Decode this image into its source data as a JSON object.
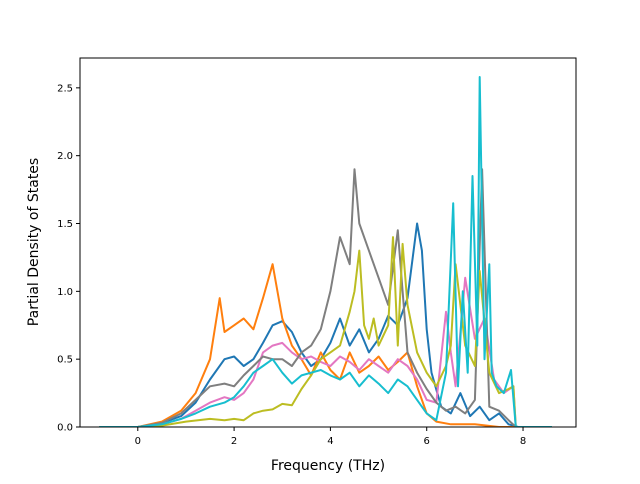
{
  "chart_data": {
    "type": "line",
    "title": "",
    "xlabel": "Frequency (THz)",
    "ylabel": "Partial Density of States",
    "xlim": [
      -1.2,
      9.1
    ],
    "ylim": [
      0.0,
      2.72
    ],
    "xticks": [
      0,
      2,
      4,
      6,
      8
    ],
    "yticks": [
      0.0,
      0.5,
      1.0,
      1.5,
      2.0,
      2.5
    ],
    "xtick_labels": [
      "0",
      "2",
      "4",
      "6",
      "8"
    ],
    "ytick_labels": [
      "0.0",
      "0.5",
      "1.0",
      "1.5",
      "2.0",
      "2.5"
    ],
    "grid": false,
    "legend": "none",
    "series": [
      {
        "color": "#1f77b4",
        "points": [
          [
            -0.8,
            0
          ],
          [
            0,
            0
          ],
          [
            0.5,
            0.03
          ],
          [
            0.9,
            0.08
          ],
          [
            1.2,
            0.18
          ],
          [
            1.5,
            0.35
          ],
          [
            1.8,
            0.5
          ],
          [
            2.0,
            0.52
          ],
          [
            2.2,
            0.45
          ],
          [
            2.4,
            0.5
          ],
          [
            2.6,
            0.62
          ],
          [
            2.8,
            0.75
          ],
          [
            3.0,
            0.78
          ],
          [
            3.2,
            0.7
          ],
          [
            3.4,
            0.55
          ],
          [
            3.6,
            0.45
          ],
          [
            3.8,
            0.5
          ],
          [
            4.0,
            0.62
          ],
          [
            4.2,
            0.8
          ],
          [
            4.4,
            0.6
          ],
          [
            4.6,
            0.72
          ],
          [
            4.8,
            0.55
          ],
          [
            5.0,
            0.65
          ],
          [
            5.2,
            0.82
          ],
          [
            5.4,
            0.75
          ],
          [
            5.6,
            0.95
          ],
          [
            5.8,
            1.5
          ],
          [
            5.9,
            1.3
          ],
          [
            6.0,
            0.72
          ],
          [
            6.1,
            0.4
          ],
          [
            6.3,
            0.15
          ],
          [
            6.5,
            0.1
          ],
          [
            6.7,
            0.25
          ],
          [
            6.9,
            0.08
          ],
          [
            7.1,
            0.15
          ],
          [
            7.3,
            0.05
          ],
          [
            7.5,
            0.1
          ],
          [
            7.7,
            0.02
          ],
          [
            7.9,
            0
          ],
          [
            8.6,
            0
          ]
        ]
      },
      {
        "color": "#ff7f0e",
        "points": [
          [
            -0.8,
            0
          ],
          [
            0,
            0
          ],
          [
            0.5,
            0.04
          ],
          [
            0.9,
            0.12
          ],
          [
            1.2,
            0.25
          ],
          [
            1.5,
            0.5
          ],
          [
            1.7,
            0.95
          ],
          [
            1.8,
            0.7
          ],
          [
            2.0,
            0.75
          ],
          [
            2.2,
            0.8
          ],
          [
            2.4,
            0.72
          ],
          [
            2.6,
            0.95
          ],
          [
            2.8,
            1.2
          ],
          [
            3.0,
            0.8
          ],
          [
            3.2,
            0.6
          ],
          [
            3.4,
            0.5
          ],
          [
            3.6,
            0.38
          ],
          [
            3.8,
            0.55
          ],
          [
            4.0,
            0.42
          ],
          [
            4.2,
            0.35
          ],
          [
            4.4,
            0.55
          ],
          [
            4.6,
            0.4
          ],
          [
            4.8,
            0.45
          ],
          [
            5.0,
            0.52
          ],
          [
            5.2,
            0.42
          ],
          [
            5.4,
            0.48
          ],
          [
            5.6,
            0.55
          ],
          [
            5.8,
            0.3
          ],
          [
            6.0,
            0.1
          ],
          [
            6.2,
            0.04
          ],
          [
            6.5,
            0.02
          ],
          [
            7.0,
            0.02
          ],
          [
            7.5,
            0
          ],
          [
            8.6,
            0
          ]
        ]
      },
      {
        "color": "#e377c2",
        "points": [
          [
            -0.8,
            0
          ],
          [
            0,
            0
          ],
          [
            0.5,
            0.02
          ],
          [
            0.9,
            0.06
          ],
          [
            1.2,
            0.12
          ],
          [
            1.5,
            0.18
          ],
          [
            1.8,
            0.22
          ],
          [
            2.0,
            0.2
          ],
          [
            2.2,
            0.25
          ],
          [
            2.4,
            0.35
          ],
          [
            2.6,
            0.55
          ],
          [
            2.8,
            0.6
          ],
          [
            3.0,
            0.62
          ],
          [
            3.2,
            0.55
          ],
          [
            3.4,
            0.5
          ],
          [
            3.6,
            0.52
          ],
          [
            3.8,
            0.48
          ],
          [
            4.0,
            0.45
          ],
          [
            4.2,
            0.52
          ],
          [
            4.4,
            0.48
          ],
          [
            4.6,
            0.42
          ],
          [
            4.8,
            0.5
          ],
          [
            5.0,
            0.45
          ],
          [
            5.2,
            0.4
          ],
          [
            5.4,
            0.5
          ],
          [
            5.6,
            0.45
          ],
          [
            5.8,
            0.35
          ],
          [
            6.0,
            0.2
          ],
          [
            6.2,
            0.18
          ],
          [
            6.4,
            0.85
          ],
          [
            6.5,
            0.55
          ],
          [
            6.6,
            0.3
          ],
          [
            6.8,
            1.1
          ],
          [
            7.0,
            0.65
          ],
          [
            7.2,
            0.8
          ],
          [
            7.4,
            0.35
          ],
          [
            7.6,
            0.25
          ],
          [
            7.8,
            0.3
          ],
          [
            7.85,
            0
          ],
          [
            8.6,
            0
          ]
        ]
      },
      {
        "color": "#7f7f7f",
        "points": [
          [
            -0.8,
            0
          ],
          [
            0,
            0
          ],
          [
            0.5,
            0.03
          ],
          [
            0.9,
            0.1
          ],
          [
            1.2,
            0.2
          ],
          [
            1.5,
            0.3
          ],
          [
            1.8,
            0.32
          ],
          [
            2.0,
            0.3
          ],
          [
            2.2,
            0.38
          ],
          [
            2.4,
            0.45
          ],
          [
            2.6,
            0.52
          ],
          [
            2.8,
            0.5
          ],
          [
            3.0,
            0.5
          ],
          [
            3.2,
            0.45
          ],
          [
            3.4,
            0.55
          ],
          [
            3.6,
            0.6
          ],
          [
            3.8,
            0.72
          ],
          [
            4.0,
            1.0
          ],
          [
            4.2,
            1.4
          ],
          [
            4.4,
            1.2
          ],
          [
            4.5,
            1.9
          ],
          [
            4.6,
            1.5
          ],
          [
            4.8,
            1.3
          ],
          [
            5.0,
            1.1
          ],
          [
            5.2,
            0.9
          ],
          [
            5.4,
            1.45
          ],
          [
            5.5,
            1.0
          ],
          [
            5.6,
            0.55
          ],
          [
            5.8,
            0.4
          ],
          [
            6.0,
            0.28
          ],
          [
            6.2,
            0.18
          ],
          [
            6.4,
            0.12
          ],
          [
            6.6,
            0.15
          ],
          [
            6.8,
            0.1
          ],
          [
            7.0,
            0.2
          ],
          [
            7.15,
            1.9
          ],
          [
            7.3,
            0.15
          ],
          [
            7.5,
            0.12
          ],
          [
            7.7,
            0.05
          ],
          [
            7.85,
            0
          ],
          [
            8.6,
            0
          ]
        ]
      },
      {
        "color": "#bcbd22",
        "points": [
          [
            -0.8,
            0
          ],
          [
            0,
            0
          ],
          [
            0.5,
            0.01
          ],
          [
            1.0,
            0.04
          ],
          [
            1.5,
            0.06
          ],
          [
            1.8,
            0.05
          ],
          [
            2.0,
            0.06
          ],
          [
            2.2,
            0.05
          ],
          [
            2.4,
            0.1
          ],
          [
            2.6,
            0.12
          ],
          [
            2.8,
            0.13
          ],
          [
            3.0,
            0.17
          ],
          [
            3.2,
            0.16
          ],
          [
            3.4,
            0.28
          ],
          [
            3.6,
            0.38
          ],
          [
            3.8,
            0.5
          ],
          [
            4.0,
            0.55
          ],
          [
            4.2,
            0.6
          ],
          [
            4.4,
            0.85
          ],
          [
            4.5,
            1.0
          ],
          [
            4.6,
            1.3
          ],
          [
            4.7,
            0.75
          ],
          [
            4.8,
            0.65
          ],
          [
            4.9,
            0.8
          ],
          [
            5.0,
            0.6
          ],
          [
            5.2,
            0.75
          ],
          [
            5.3,
            1.4
          ],
          [
            5.4,
            0.6
          ],
          [
            5.5,
            1.35
          ],
          [
            5.6,
            0.9
          ],
          [
            5.8,
            0.55
          ],
          [
            6.0,
            0.4
          ],
          [
            6.2,
            0.3
          ],
          [
            6.4,
            0.45
          ],
          [
            6.5,
            0.6
          ],
          [
            6.6,
            1.2
          ],
          [
            6.8,
            0.6
          ],
          [
            7.0,
            0.45
          ],
          [
            7.1,
            1.15
          ],
          [
            7.3,
            0.4
          ],
          [
            7.5,
            0.25
          ],
          [
            7.7,
            0.28
          ],
          [
            7.8,
            0.3
          ],
          [
            7.85,
            0
          ],
          [
            8.6,
            0
          ]
        ]
      },
      {
        "color": "#17becf",
        "points": [
          [
            -0.8,
            0
          ],
          [
            0,
            0
          ],
          [
            0.5,
            0.02
          ],
          [
            0.9,
            0.06
          ],
          [
            1.2,
            0.1
          ],
          [
            1.5,
            0.15
          ],
          [
            1.8,
            0.18
          ],
          [
            2.0,
            0.22
          ],
          [
            2.2,
            0.3
          ],
          [
            2.4,
            0.4
          ],
          [
            2.6,
            0.45
          ],
          [
            2.8,
            0.5
          ],
          [
            3.0,
            0.4
          ],
          [
            3.2,
            0.32
          ],
          [
            3.4,
            0.38
          ],
          [
            3.6,
            0.4
          ],
          [
            3.8,
            0.42
          ],
          [
            4.0,
            0.38
          ],
          [
            4.2,
            0.35
          ],
          [
            4.4,
            0.4
          ],
          [
            4.6,
            0.3
          ],
          [
            4.8,
            0.38
          ],
          [
            5.0,
            0.32
          ],
          [
            5.2,
            0.25
          ],
          [
            5.4,
            0.35
          ],
          [
            5.6,
            0.3
          ],
          [
            5.8,
            0.2
          ],
          [
            6.0,
            0.1
          ],
          [
            6.2,
            0.05
          ],
          [
            6.4,
            0.4
          ],
          [
            6.55,
            1.65
          ],
          [
            6.65,
            0.3
          ],
          [
            6.75,
            1.0
          ],
          [
            6.85,
            0.4
          ],
          [
            6.95,
            1.85
          ],
          [
            7.05,
            0.6
          ],
          [
            7.1,
            2.58
          ],
          [
            7.2,
            0.5
          ],
          [
            7.3,
            1.2
          ],
          [
            7.35,
            0.4
          ],
          [
            7.45,
            0.3
          ],
          [
            7.6,
            0.25
          ],
          [
            7.75,
            0.42
          ],
          [
            7.85,
            0
          ],
          [
            8.6,
            0
          ]
        ]
      }
    ]
  }
}
